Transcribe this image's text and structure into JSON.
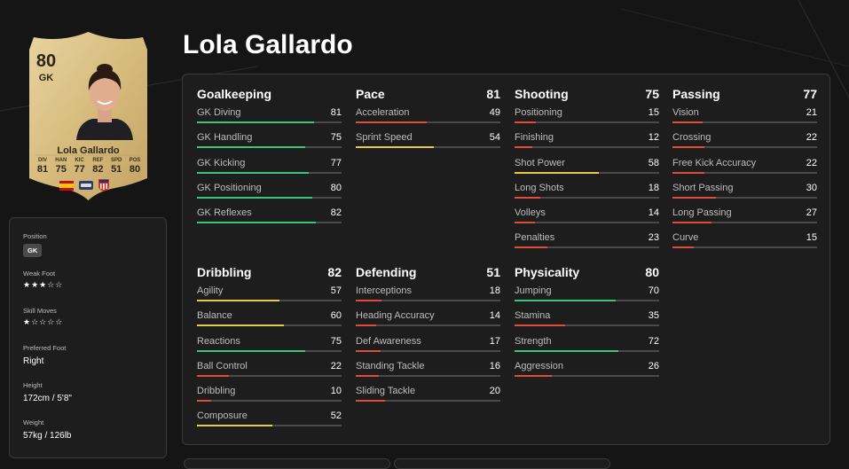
{
  "player": {
    "name": "Lola Gallardo",
    "card_rating": "80",
    "card_position": "GK",
    "card_stats": [
      {
        "label": "DIV",
        "value": "81"
      },
      {
        "label": "HAN",
        "value": "75"
      },
      {
        "label": "KIC",
        "value": "77"
      },
      {
        "label": "REF",
        "value": "82"
      },
      {
        "label": "SPD",
        "value": "51"
      },
      {
        "label": "POS",
        "value": "80"
      }
    ],
    "badges": [
      "spain-flag-icon",
      "league-logo-icon",
      "atletico-madrid-crest-icon"
    ]
  },
  "info": {
    "position_label": "Position",
    "position_value": "GK",
    "weak_foot_label": "Weak Foot",
    "weak_foot_stars": "★★★☆☆",
    "weak_foot_rating": 3,
    "skill_moves_label": "Skill Moves",
    "skill_moves_stars": "★☆☆☆☆",
    "skill_moves_rating": 1,
    "preferred_foot_label": "Preferred Foot",
    "preferred_foot_value": "Right",
    "height_label": "Height",
    "height_value": "172cm / 5'8\"",
    "weight_label": "Weight",
    "weight_value": "57kg / 126lb"
  },
  "colors": {
    "high": "#3bc47f",
    "mid": "#e6c94a",
    "low": "#e04c3c",
    "track": "#4a4a4a"
  },
  "groups": [
    {
      "name": "Goalkeeping",
      "value": "",
      "attrs": [
        {
          "name": "GK Diving",
          "value": 81
        },
        {
          "name": "GK Handling",
          "value": 75
        },
        {
          "name": "GK Kicking",
          "value": 77
        },
        {
          "name": "GK Positioning",
          "value": 80
        },
        {
          "name": "GK Reflexes",
          "value": 82
        }
      ]
    },
    {
      "name": "Pace",
      "value": "81",
      "attrs": [
        {
          "name": "Acceleration",
          "value": 49
        },
        {
          "name": "Sprint Speed",
          "value": 54
        }
      ]
    },
    {
      "name": "Shooting",
      "value": "75",
      "attrs": [
        {
          "name": "Positioning",
          "value": 15
        },
        {
          "name": "Finishing",
          "value": 12
        },
        {
          "name": "Shot Power",
          "value": 58
        },
        {
          "name": "Long Shots",
          "value": 18
        },
        {
          "name": "Volleys",
          "value": 14
        },
        {
          "name": "Penalties",
          "value": 23
        }
      ]
    },
    {
      "name": "Passing",
      "value": "77",
      "attrs": [
        {
          "name": "Vision",
          "value": 21
        },
        {
          "name": "Crossing",
          "value": 22
        },
        {
          "name": "Free Kick Accuracy",
          "value": 22
        },
        {
          "name": "Short Passing",
          "value": 30
        },
        {
          "name": "Long Passing",
          "value": 27
        },
        {
          "name": "Curve",
          "value": 15
        }
      ]
    },
    {
      "name": "Dribbling",
      "value": "82",
      "attrs": [
        {
          "name": "Agility",
          "value": 57
        },
        {
          "name": "Balance",
          "value": 60
        },
        {
          "name": "Reactions",
          "value": 75
        },
        {
          "name": "Ball Control",
          "value": 22
        },
        {
          "name": "Dribbling",
          "value": 10
        },
        {
          "name": "Composure",
          "value": 52
        }
      ]
    },
    {
      "name": "Defending",
      "value": "51",
      "attrs": [
        {
          "name": "Interceptions",
          "value": 18
        },
        {
          "name": "Heading Accuracy",
          "value": 14
        },
        {
          "name": "Def Awareness",
          "value": 17
        },
        {
          "name": "Standing Tackle",
          "value": 16
        },
        {
          "name": "Sliding Tackle",
          "value": 20
        }
      ]
    },
    {
      "name": "Physicality",
      "value": "80",
      "attrs": [
        {
          "name": "Jumping",
          "value": 70
        },
        {
          "name": "Stamina",
          "value": 35
        },
        {
          "name": "Strength",
          "value": 72
        },
        {
          "name": "Aggression",
          "value": 26
        }
      ]
    }
  ]
}
